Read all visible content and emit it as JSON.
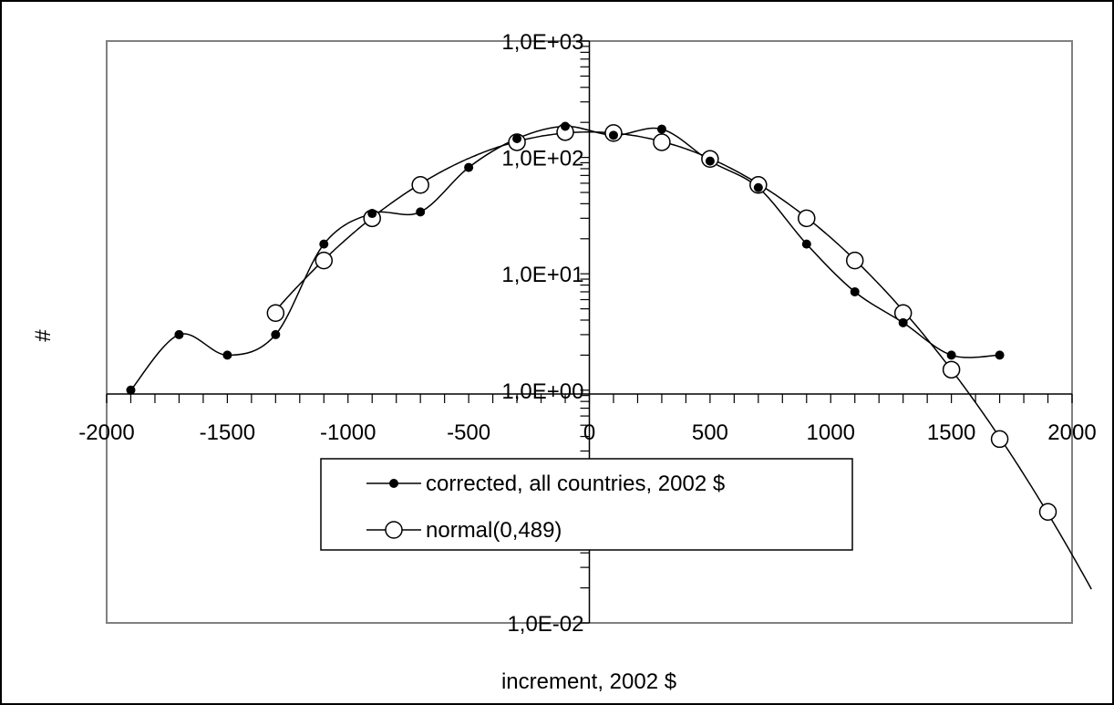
{
  "chart_data": {
    "type": "line",
    "title": "",
    "xlabel": "increment, 2002 $",
    "ylabel": "#",
    "y_scale": "log",
    "xlim": [
      -2000,
      2000
    ],
    "ylim": [
      0.01,
      1000
    ],
    "x_ticks": [
      -2000,
      -1500,
      -1000,
      -500,
      0,
      500,
      1000,
      1500,
      2000
    ],
    "x_tick_labels": [
      "-2000",
      "-1500",
      "-1000",
      "-500",
      "0",
      "500",
      "1000",
      "1500",
      "2000"
    ],
    "y_ticks": [
      0.01,
      1,
      1000
    ],
    "y_tick_labels": [
      "1,0E-02",
      "1,0E+00",
      "1,0E+03"
    ],
    "extra_y_tick_labels": [
      {
        "value": 10,
        "label": "1,0E+01"
      },
      {
        "value": 100,
        "label": "1,0E+02"
      }
    ],
    "grid": false,
    "legend_position": "center",
    "series": [
      {
        "name": "corrected, all countries, 2002 $",
        "marker": "filled-circle",
        "x": [
          -1900,
          -1700,
          -1500,
          -1300,
          -1100,
          -900,
          -700,
          -500,
          -300,
          -100,
          100,
          300,
          500,
          700,
          900,
          1100,
          1300,
          1500,
          1700
        ],
        "values": [
          1.0,
          3.0,
          2.0,
          3.0,
          18,
          33,
          34,
          82,
          145,
          185,
          155,
          175,
          93,
          55,
          18,
          7,
          3.8,
          2.0,
          2.0
        ]
      },
      {
        "name": "normal(0,489)",
        "marker": "open-circle",
        "x": [
          -1300,
          -1100,
          -900,
          -700,
          -300,
          -100,
          100,
          300,
          500,
          700,
          900,
          1100,
          1300,
          1500,
          1700,
          1900
        ],
        "values": [
          4.6,
          13,
          30,
          58,
          135,
          165,
          162,
          135,
          97,
          58,
          30,
          13,
          4.6,
          1.5,
          0.38,
          0.09
        ],
        "curve_extends_to_x": 2080
      }
    ]
  }
}
